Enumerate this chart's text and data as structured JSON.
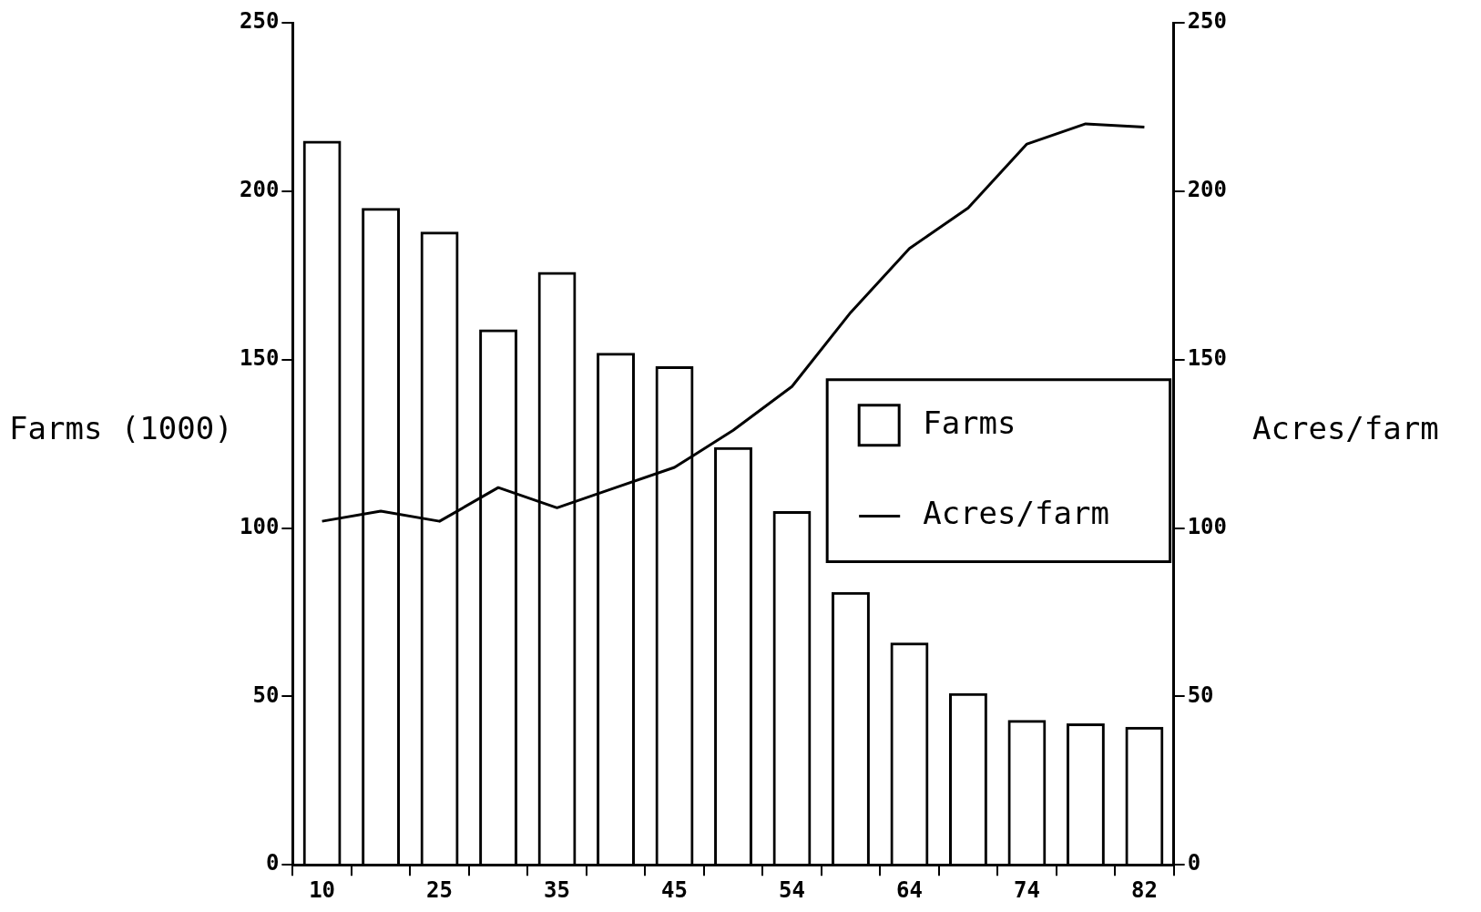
{
  "chart_data": {
    "type": "bar",
    "ylabel": "Farms (1000)",
    "y2label": "Acres/farm",
    "categories": [
      "10",
      null,
      "25",
      null,
      "35",
      null,
      "45",
      null,
      "54",
      null,
      "64",
      null,
      "74",
      null,
      "82"
    ],
    "series": [
      {
        "name": "Farms",
        "color": "#000000",
        "values": [
          215,
          195,
          188,
          159,
          176,
          152,
          148,
          124,
          105,
          81,
          66,
          51,
          43,
          42,
          41
        ]
      },
      {
        "name": "Acres/farm",
        "type": "line",
        "axis": "y2",
        "color": "#000000",
        "values": [
          102,
          105,
          102,
          112,
          106,
          112,
          118,
          129,
          142,
          164,
          183,
          195,
          214,
          220,
          219
        ]
      }
    ],
    "ylim": [
      0,
      250
    ],
    "yticks": [
      0,
      50,
      100,
      150,
      200,
      250
    ],
    "y2lim": [
      0,
      250
    ],
    "y2ticks": [
      0,
      50,
      100,
      150,
      200,
      250
    ],
    "legend": "right",
    "marker": "none",
    "grid": false
  }
}
